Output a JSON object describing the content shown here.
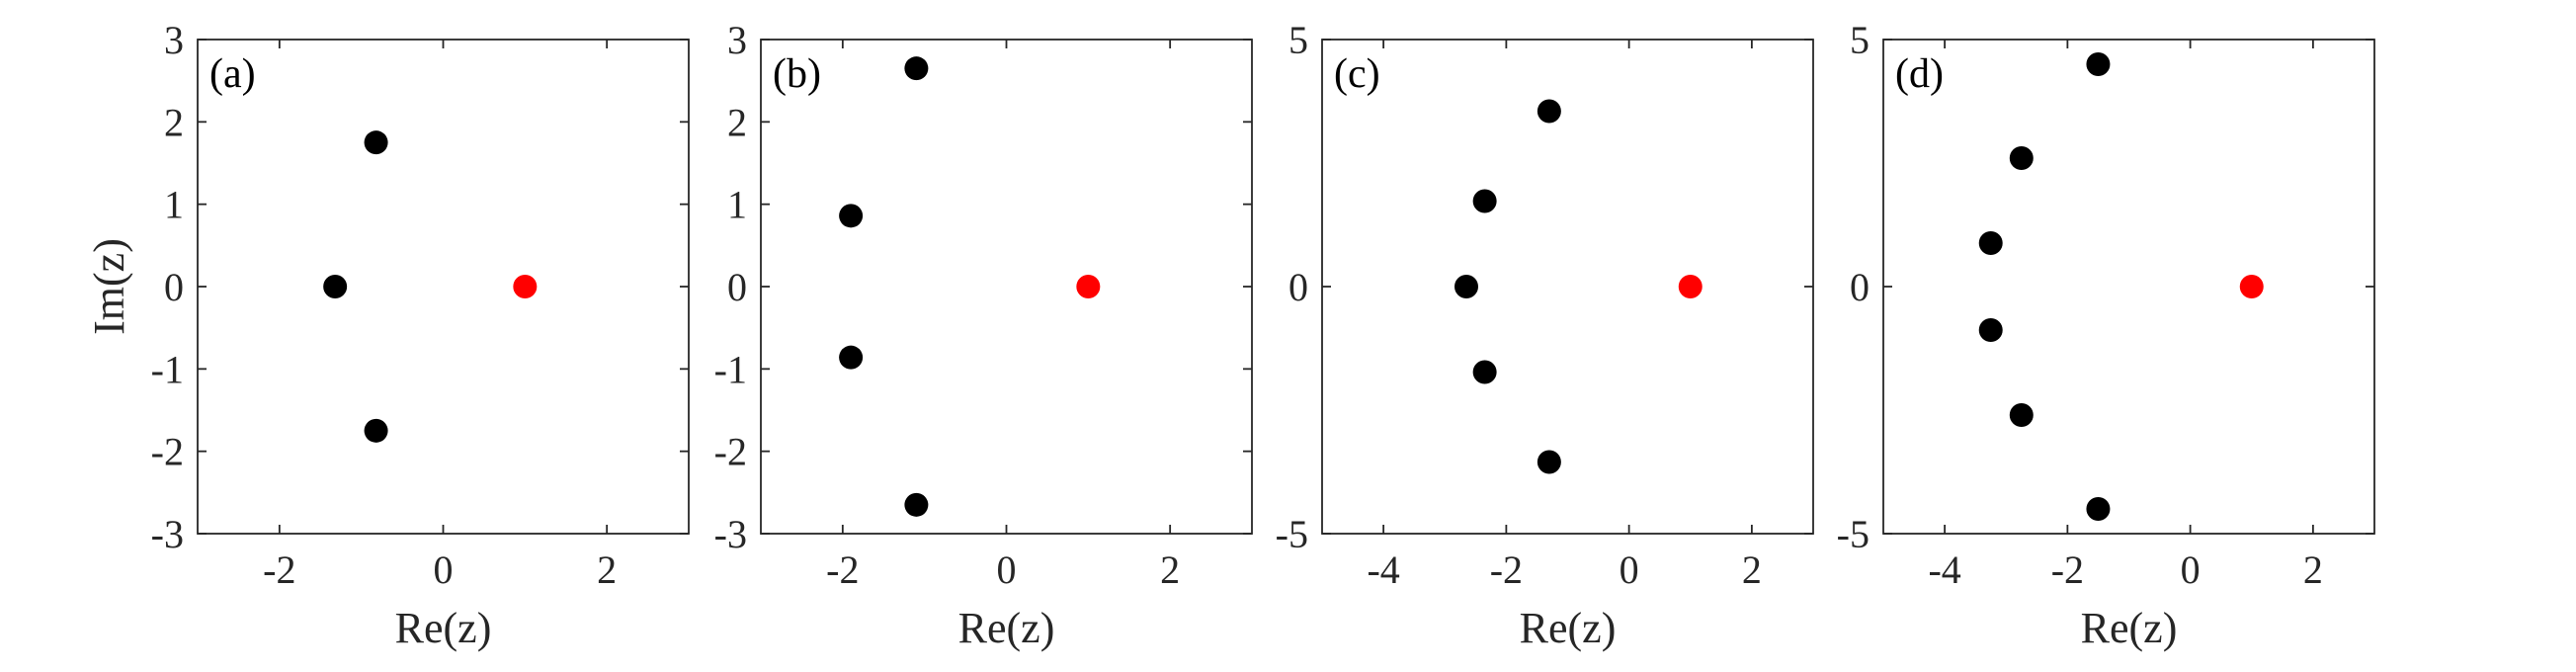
{
  "chart_data": [
    {
      "type": "scatter",
      "panel_label": "(a)",
      "xlabel": "Re(z)",
      "ylabel": "Im(z)",
      "xlim": [
        -3,
        3
      ],
      "ylim": [
        -3,
        3
      ],
      "xticks": [
        -2,
        0,
        2
      ],
      "yticks": [
        -3,
        -2,
        -1,
        0,
        1,
        2,
        3
      ],
      "grid": false,
      "series": [
        {
          "color": "#000000",
          "points": [
            [
              -0.82,
              1.75
            ],
            [
              -1.32,
              0
            ],
            [
              -0.82,
              -1.75
            ]
          ]
        },
        {
          "color": "#ff0000",
          "points": [
            [
              1,
              0
            ]
          ]
        }
      ]
    },
    {
      "type": "scatter",
      "panel_label": "(b)",
      "xlabel": "Re(z)",
      "ylabel": "",
      "xlim": [
        -3,
        3
      ],
      "ylim": [
        -3,
        3
      ],
      "xticks": [
        -2,
        0,
        2
      ],
      "yticks": [
        -3,
        -2,
        -1,
        0,
        1,
        2,
        3
      ],
      "grid": false,
      "series": [
        {
          "color": "#000000",
          "points": [
            [
              -1.1,
              2.65
            ],
            [
              -1.9,
              0.86
            ],
            [
              -1.9,
              -0.86
            ],
            [
              -1.1,
              -2.65
            ]
          ]
        },
        {
          "color": "#ff0000",
          "points": [
            [
              1,
              0
            ]
          ]
        }
      ]
    },
    {
      "type": "scatter",
      "panel_label": "(c)",
      "xlabel": "Re(z)",
      "ylabel": "",
      "xlim": [
        -5,
        3
      ],
      "ylim": [
        -5,
        5
      ],
      "xticks": [
        -4,
        -2,
        0,
        2
      ],
      "yticks": [
        -5,
        0,
        5
      ],
      "grid": false,
      "series": [
        {
          "color": "#000000",
          "points": [
            [
              -1.3,
              3.55
            ],
            [
              -2.35,
              1.73
            ],
            [
              -2.65,
              0
            ],
            [
              -2.35,
              -1.73
            ],
            [
              -1.3,
              -3.55
            ]
          ]
        },
        {
          "color": "#ff0000",
          "points": [
            [
              1,
              0
            ]
          ]
        }
      ]
    },
    {
      "type": "scatter",
      "panel_label": "(d)",
      "xlabel": "Re(z)",
      "ylabel": "",
      "xlim": [
        -5,
        3
      ],
      "ylim": [
        -5,
        5
      ],
      "xticks": [
        -4,
        -2,
        0,
        2
      ],
      "yticks": [
        -5,
        0,
        5
      ],
      "grid": false,
      "series": [
        {
          "color": "#000000",
          "points": [
            [
              -1.5,
              4.5
            ],
            [
              -2.75,
              2.6
            ],
            [
              -3.25,
              0.88
            ],
            [
              -3.25,
              -0.88
            ],
            [
              -2.75,
              -2.6
            ],
            [
              -1.5,
              -4.5
            ]
          ]
        },
        {
          "color": "#ff0000",
          "points": [
            [
              1,
              0
            ]
          ]
        }
      ]
    }
  ]
}
